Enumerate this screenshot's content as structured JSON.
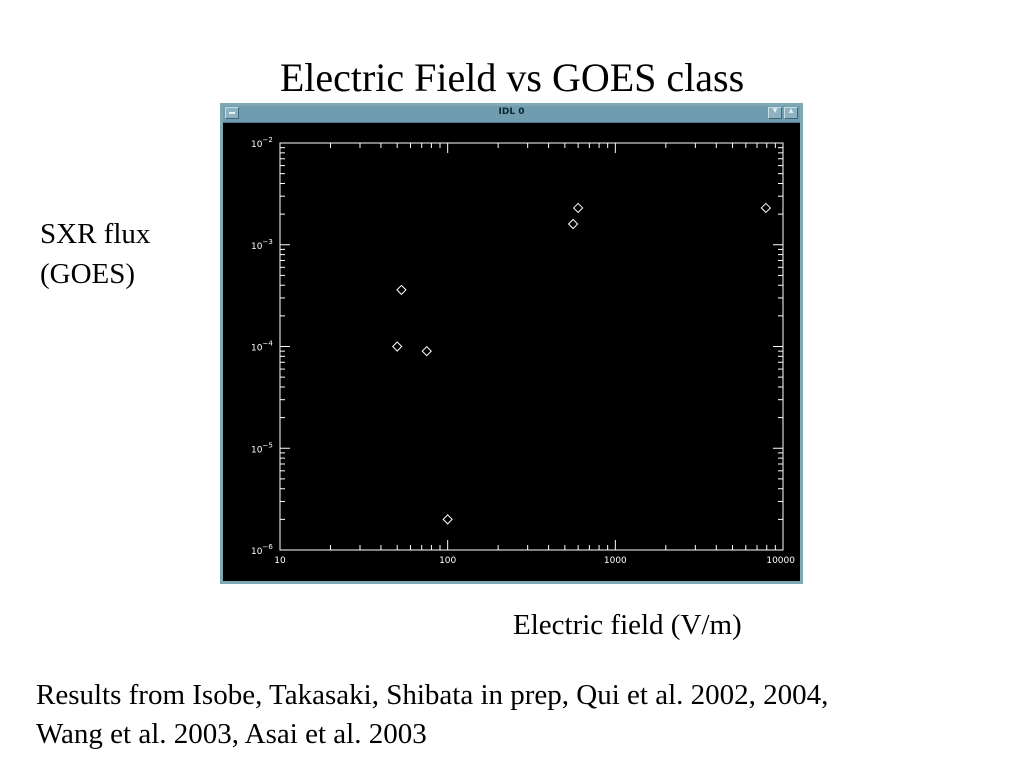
{
  "slide": {
    "title": "Electric Field vs GOES class",
    "ylabel_line1": "SXR flux",
    "ylabel_line2": "(GOES)",
    "xlabel": "Electric field (V/m)",
    "caption_line1": "Results from Isobe, Takasaki, Shibata in prep, Qui et al. 2002, 2004,",
    "caption_line2": "Wang et al. 2003, Asai et al. 2003"
  },
  "window": {
    "title": "IDL 0",
    "frame_color": "#7fa7b6",
    "titlebar_color": "#6f9cae",
    "plot_background": "#000000",
    "plot_foreground": "#ffffff"
  },
  "chart_data": {
    "type": "scatter",
    "marker": "diamond",
    "xscale": "log",
    "yscale": "log",
    "xlim": [
      10,
      10000
    ],
    "ylim": [
      1e-06,
      0.01
    ],
    "xticks": [
      {
        "value": 10,
        "label": "10"
      },
      {
        "value": 100,
        "label": "100"
      },
      {
        "value": 1000,
        "label": "1000"
      },
      {
        "value": 10000,
        "label": "10000"
      }
    ],
    "yticks": [
      {
        "value": 1e-06,
        "base": "10",
        "exp": "−6"
      },
      {
        "value": 1e-05,
        "base": "10",
        "exp": "−5"
      },
      {
        "value": 0.0001,
        "base": "10",
        "exp": "−4"
      },
      {
        "value": 0.001,
        "base": "10",
        "exp": "−3"
      },
      {
        "value": 0.01,
        "base": "10",
        "exp": "−2"
      }
    ],
    "points": [
      {
        "x": 50,
        "y": 0.0001
      },
      {
        "x": 53,
        "y": 0.00036
      },
      {
        "x": 75,
        "y": 9e-05
      },
      {
        "x": 100,
        "y": 2e-06
      },
      {
        "x": 560,
        "y": 0.0016
      },
      {
        "x": 600,
        "y": 0.0023
      },
      {
        "x": 7900,
        "y": 0.0023
      }
    ]
  }
}
